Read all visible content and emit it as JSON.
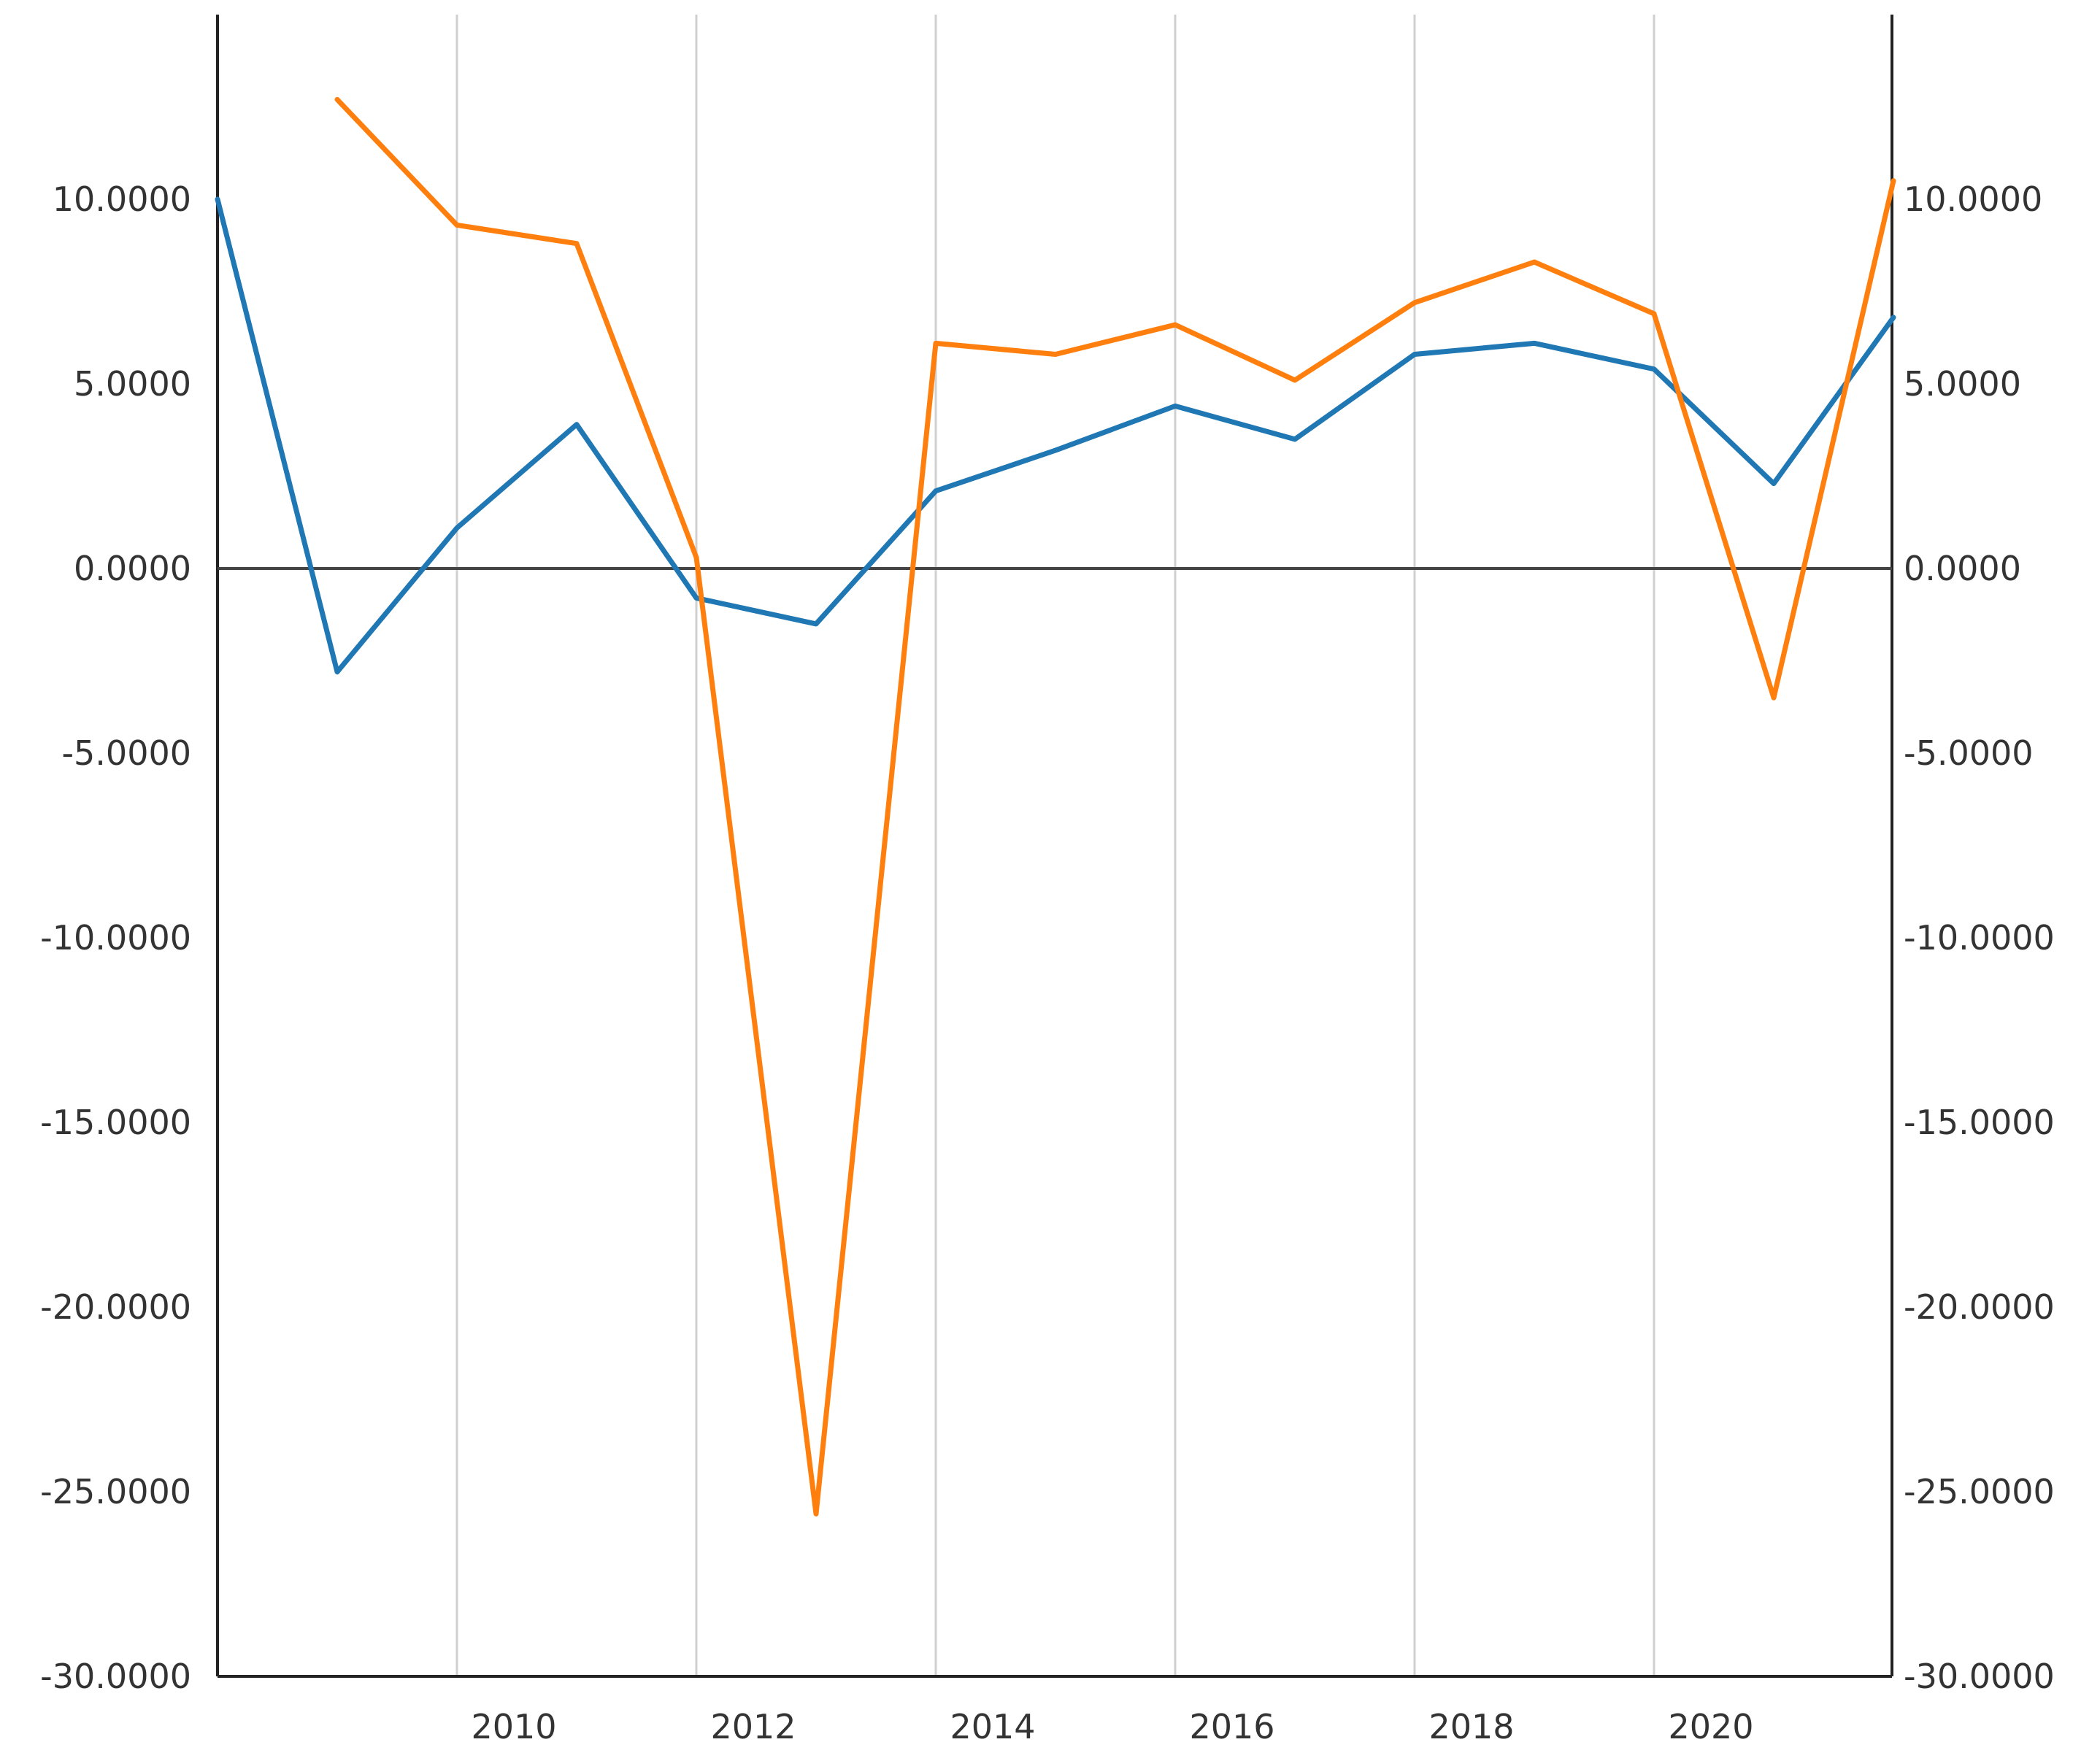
{
  "chart_data": {
    "type": "line",
    "title": "",
    "xlabel": "",
    "ylabel": "",
    "x_ticks": [
      2010,
      2012,
      2014,
      2016,
      2018,
      2020
    ],
    "xlim": [
      2008,
      2022
    ],
    "ylim": [
      -30,
      15
    ],
    "y_ticks": [
      "10.0000",
      "5.0000",
      "0.0000",
      "-5.0000",
      "-10.0000",
      "-15.0000",
      "-20.0000",
      "-25.0000",
      "-30.0000"
    ],
    "y_tick_values": [
      10,
      5,
      0,
      -5,
      -10,
      -15,
      -20,
      -25,
      -30
    ],
    "grid": "vertical",
    "legend": "none",
    "series": [
      {
        "color": "#1f77b4",
        "x": [
          2008,
          2009,
          2010,
          2011,
          2012,
          2013,
          2014,
          2015,
          2016,
          2017,
          2018,
          2019,
          2020,
          2021,
          2022
        ],
        "values": [
          10.0,
          -2.8,
          1.1,
          3.9,
          -0.8,
          -1.5,
          2.1,
          3.2,
          4.4,
          3.5,
          5.8,
          6.1,
          5.4,
          2.3,
          6.8
        ]
      },
      {
        "color": "#ff7f0e",
        "x": [
          2009,
          2010,
          2011,
          2012,
          2013,
          2014,
          2015,
          2016,
          2017,
          2018,
          2019,
          2020,
          2021,
          2022
        ],
        "values": [
          12.7,
          9.3,
          8.8,
          0.3,
          -25.6,
          6.1,
          5.8,
          6.6,
          5.1,
          7.2,
          8.3,
          6.9,
          -3.5,
          10.5
        ]
      }
    ]
  }
}
